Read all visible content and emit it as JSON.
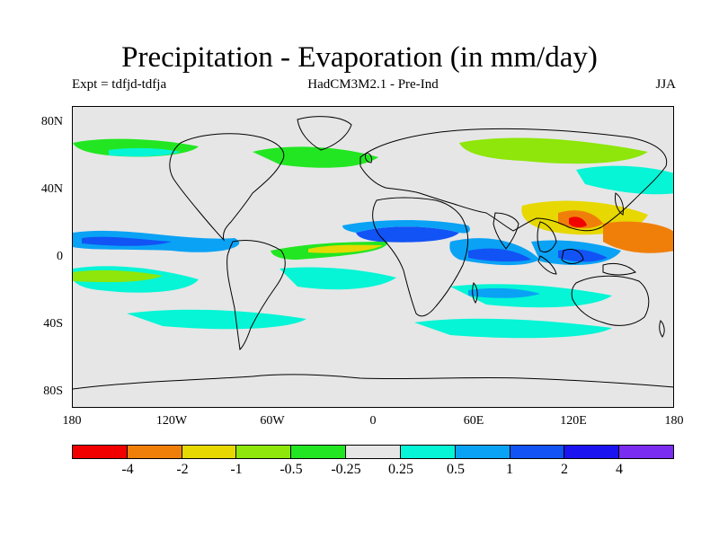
{
  "title": "Precipitation - Evaporation (in mm/day)",
  "subtitle_left": "Expt = tdfjd-tdfja",
  "subtitle_center": "HadCM3M2.1 - Pre-Ind",
  "subtitle_right": "JJA",
  "lat_labels": [
    "80N",
    "40N",
    "0",
    "40S",
    "80S"
  ],
  "lon_labels": [
    "180",
    "120W",
    "60W",
    "0",
    "60E",
    "120E",
    "180"
  ],
  "colorbar": {
    "colors": [
      "#f20000",
      "#f07f0a",
      "#e6d800",
      "#8ee60a",
      "#22e622",
      "#e6e6e6",
      "#05f5d6",
      "#0aa2f5",
      "#1253f5",
      "#1c14f0",
      "#7a2cf0"
    ],
    "labels": [
      "-4",
      "-2",
      "-1",
      "-0.5",
      "-0.25",
      "0.25",
      "0.5",
      "1",
      "2",
      "4"
    ]
  }
}
